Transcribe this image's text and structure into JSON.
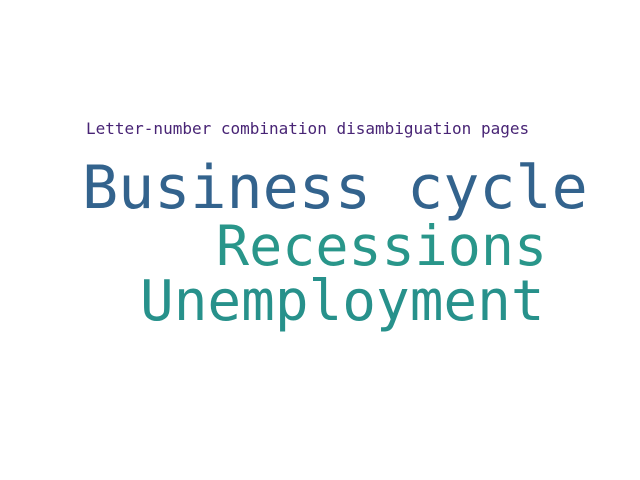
{
  "word_cloud": {
    "words": [
      {
        "text": "Letter-number combination disambiguation pages",
        "color": "#482475"
      },
      {
        "text": "Business cycle",
        "color": "#33638d"
      },
      {
        "text": "Recessions",
        "color": "#29968a"
      },
      {
        "text": "Unemployment",
        "color": "#27918b"
      }
    ]
  }
}
